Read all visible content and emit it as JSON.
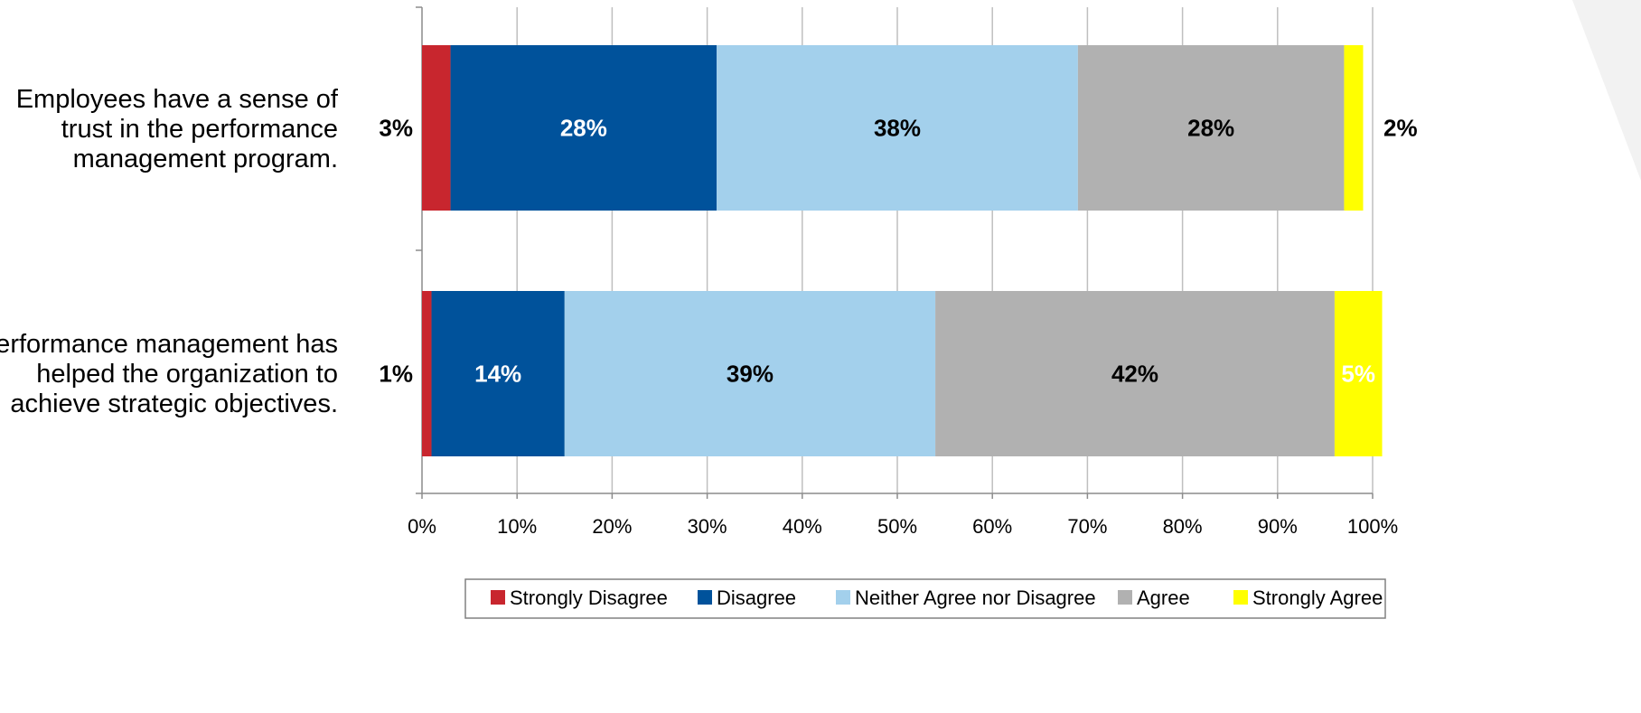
{
  "chart_data": {
    "type": "bar",
    "orientation": "horizontal",
    "stacked": true,
    "categories": [
      "Employees have a sense of trust in the performance management program.",
      "Performance management has helped the organization to achieve strategic objectives."
    ],
    "category_lines": [
      [
        "Employees have a sense of",
        "trust in the performance",
        "management program."
      ],
      [
        "Performance management has",
        "helped the organization to",
        "achieve strategic objectives."
      ]
    ],
    "series": [
      {
        "name": "Strongly Disagree",
        "color": "#c8262e",
        "values": [
          3,
          1
        ],
        "labels": [
          "3%",
          "1%"
        ],
        "label_colors": [
          "#000000",
          "#000000"
        ],
        "label_outside": [
          "left",
          "left"
        ]
      },
      {
        "name": "Disagree",
        "color": "#00529b",
        "values": [
          28,
          14
        ],
        "labels": [
          "28%",
          "14%"
        ],
        "label_colors": [
          "#ffffff",
          "#ffffff"
        ]
      },
      {
        "name": "Neither Agree nor Disagree",
        "color": "#a3d0ec",
        "values": [
          38,
          39
        ],
        "labels": [
          "38%",
          "39%"
        ],
        "label_colors": [
          "#000000",
          "#000000"
        ]
      },
      {
        "name": "Agree",
        "color": "#b1b1b1",
        "values": [
          28,
          42
        ],
        "labels": [
          "28%",
          "42%"
        ],
        "label_colors": [
          "#000000",
          "#000000"
        ]
      },
      {
        "name": "Strongly Agree",
        "color": "#ffff00",
        "values": [
          2,
          5
        ],
        "labels": [
          "2%",
          "5%"
        ],
        "label_colors": [
          "#000000",
          "#ffffff"
        ],
        "label_outside": [
          "right",
          null
        ]
      }
    ],
    "xlim": [
      0,
      100
    ],
    "x_ticks": [
      "0%",
      "10%",
      "20%",
      "30%",
      "40%",
      "50%",
      "60%",
      "70%",
      "80%",
      "90%",
      "100%"
    ],
    "grid": true,
    "legend_placement": "bottom"
  }
}
